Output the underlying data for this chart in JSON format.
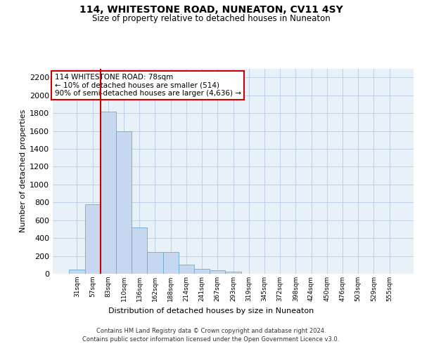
{
  "title": "114, WHITESTONE ROAD, NUNEATON, CV11 4SY",
  "subtitle": "Size of property relative to detached houses in Nuneaton",
  "xlabel": "Distribution of detached houses by size in Nuneaton",
  "ylabel": "Number of detached properties",
  "bar_labels": [
    "31sqm",
    "57sqm",
    "83sqm",
    "110sqm",
    "136sqm",
    "162sqm",
    "188sqm",
    "214sqm",
    "241sqm",
    "267sqm",
    "293sqm",
    "319sqm",
    "345sqm",
    "372sqm",
    "398sqm",
    "424sqm",
    "450sqm",
    "476sqm",
    "503sqm",
    "529sqm",
    "555sqm"
  ],
  "bar_values": [
    50,
    780,
    1820,
    1600,
    520,
    240,
    240,
    105,
    55,
    40,
    20,
    0,
    0,
    0,
    0,
    0,
    0,
    0,
    0,
    0,
    0
  ],
  "bar_color": "#c5d8ef",
  "bar_edge_color": "#6aaad4",
  "vline_color": "#cc0000",
  "annotation_text": "114 WHITESTONE ROAD: 78sqm\n← 10% of detached houses are smaller (514)\n90% of semi-detached houses are larger (4,636) →",
  "annotation_box_color": "#ffffff",
  "annotation_box_edge": "#cc0000",
  "ylim": [
    0,
    2300
  ],
  "yticks": [
    0,
    200,
    400,
    600,
    800,
    1000,
    1200,
    1400,
    1600,
    1800,
    2000,
    2200
  ],
  "footer_line1": "Contains HM Land Registry data © Crown copyright and database right 2024.",
  "footer_line2": "Contains public sector information licensed under the Open Government Licence v3.0.",
  "bg_color": "#ffffff",
  "plot_bg_color": "#e8f0f8"
}
